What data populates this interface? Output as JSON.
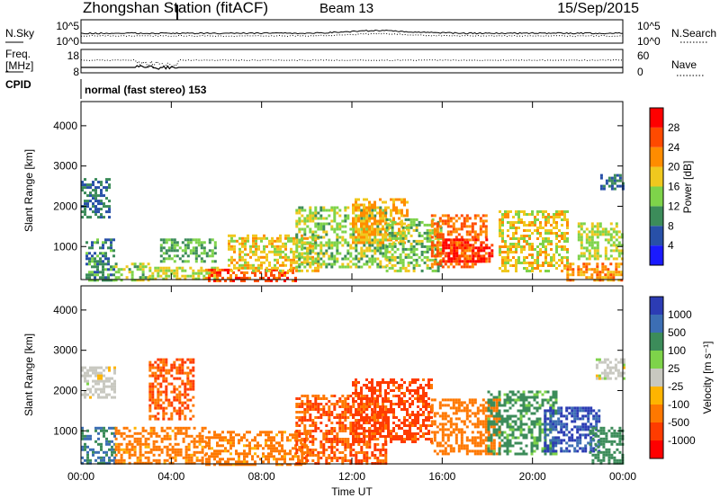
{
  "header": {
    "station": "Zhongshan Station (fitACF)",
    "beam": "Beam 13",
    "date": "15/Sep/2015"
  },
  "noise_panel": {
    "left_label": "N.Sky",
    "right_label": "N.Search",
    "left_ticks": [
      "10^5",
      "10^0"
    ],
    "right_ticks": [
      "10^5",
      "10^0"
    ]
  },
  "freq_panel": {
    "left_label_top": "Freq.",
    "left_label_bottom": "[MHz]",
    "left_ticks": [
      "18",
      "8"
    ],
    "right_label": "Nave",
    "right_ticks": [
      "60",
      "0"
    ]
  },
  "cpid": {
    "label": "CPID",
    "text": "normal (fast stereo) 153"
  },
  "colors": {
    "power": [
      "#1a1aff",
      "#2850a8",
      "#3c8c5a",
      "#7ed34a",
      "#f0c81e",
      "#ff8c00",
      "#ff4a00",
      "#ff0000"
    ],
    "velocity": [
      "#2c3cb4",
      "#3c6eb4",
      "#3c8c5a",
      "#7ed34a",
      "#c8c8c0",
      "#ffb400",
      "#ff7800",
      "#ff3c00",
      "#ff0000"
    ]
  },
  "chart_data": [
    {
      "type": "heatmap",
      "title": "",
      "xlabel": "",
      "ylabel": "Slant Range [km]",
      "x_ticks": [
        "00:00",
        "04:00",
        "08:00",
        "12:00",
        "16:00",
        "20:00",
        "00:00"
      ],
      "y_ticks": [
        1000,
        2000,
        3000,
        4000
      ],
      "xlim": [
        0,
        24
      ],
      "ylim": [
        180,
        4600
      ],
      "colorbar": {
        "label": "Power [dB]",
        "ticks": [
          4,
          8,
          12,
          16,
          20,
          24,
          28
        ],
        "range": [
          0,
          32
        ]
      },
      "regions": [
        {
          "x": [
            0.0,
            1.3
          ],
          "y": [
            1700,
            2700
          ],
          "value": 8
        },
        {
          "x": [
            0.2,
            1.5
          ],
          "y": [
            180,
            1200
          ],
          "value": 10
        },
        {
          "x": [
            1.5,
            3.0
          ],
          "y": [
            180,
            600
          ],
          "value": 14
        },
        {
          "x": [
            3.0,
            6.0
          ],
          "y": [
            180,
            500
          ],
          "value": 16
        },
        {
          "x": [
            5.5,
            9.5
          ],
          "y": [
            180,
            450
          ],
          "value": 26
        },
        {
          "x": [
            3.5,
            6.0
          ],
          "y": [
            600,
            1200
          ],
          "value": 12
        },
        {
          "x": [
            6.5,
            10.5
          ],
          "y": [
            400,
            1300
          ],
          "value": 18
        },
        {
          "x": [
            9.5,
            13.5
          ],
          "y": [
            500,
            2000
          ],
          "value": 14
        },
        {
          "x": [
            12.0,
            14.5
          ],
          "y": [
            1100,
            2200
          ],
          "value": 20
        },
        {
          "x": [
            13.5,
            16.0
          ],
          "y": [
            400,
            1700
          ],
          "value": 14
        },
        {
          "x": [
            15.5,
            18.0
          ],
          "y": [
            500,
            1800
          ],
          "value": 24
        },
        {
          "x": [
            16.0,
            18.2
          ],
          "y": [
            600,
            1200
          ],
          "value": 29
        },
        {
          "x": [
            18.5,
            21.5
          ],
          "y": [
            400,
            1900
          ],
          "value": 18
        },
        {
          "x": [
            21.5,
            24.0
          ],
          "y": [
            180,
            600
          ],
          "value": 22
        },
        {
          "x": [
            22.0,
            24.0
          ],
          "y": [
            700,
            1600
          ],
          "value": 16
        },
        {
          "x": [
            23.0,
            24.0
          ],
          "y": [
            2400,
            2800
          ],
          "value": 8
        }
      ]
    },
    {
      "type": "heatmap",
      "title": "",
      "xlabel": "Time UT",
      "ylabel": "Slant Range [km]",
      "x_ticks": [
        "00:00",
        "04:00",
        "08:00",
        "12:00",
        "16:00",
        "20:00",
        "00:00"
      ],
      "y_ticks": [
        1000,
        2000,
        3000,
        4000
      ],
      "xlim": [
        0,
        24
      ],
      "ylim": [
        180,
        4600
      ],
      "colorbar": {
        "label": "Velocity [m s⁻¹]",
        "ticks": [
          "1000",
          "500",
          "100",
          "25",
          "-25",
          "-100",
          "-500",
          "-1000"
        ]
      },
      "regions": [
        {
          "x": [
            0.0,
            1.5
          ],
          "y": [
            1800,
            2600
          ],
          "value": 0
        },
        {
          "x": [
            0.0,
            1.5
          ],
          "y": [
            180,
            1100
          ],
          "value": 300
        },
        {
          "x": [
            1.5,
            5.5
          ],
          "y": [
            180,
            1100
          ],
          "value": -150
        },
        {
          "x": [
            3.0,
            5.0
          ],
          "y": [
            1300,
            2800
          ],
          "value": -300
        },
        {
          "x": [
            5.5,
            10.0
          ],
          "y": [
            180,
            1000
          ],
          "value": -150
        },
        {
          "x": [
            9.5,
            13.5
          ],
          "y": [
            180,
            1900
          ],
          "value": -300
        },
        {
          "x": [
            12.0,
            15.5
          ],
          "y": [
            700,
            2300
          ],
          "value": -400
        },
        {
          "x": [
            15.5,
            18.5
          ],
          "y": [
            400,
            1800
          ],
          "value": -200
        },
        {
          "x": [
            18.0,
            21.0
          ],
          "y": [
            400,
            2000
          ],
          "value": 80
        },
        {
          "x": [
            20.5,
            23.0
          ],
          "y": [
            500,
            1600
          ],
          "value": 800
        },
        {
          "x": [
            22.5,
            24.0
          ],
          "y": [
            180,
            1100
          ],
          "value": 150
        },
        {
          "x": [
            22.8,
            24.0
          ],
          "y": [
            2300,
            2800
          ],
          "value": 0
        }
      ]
    }
  ]
}
